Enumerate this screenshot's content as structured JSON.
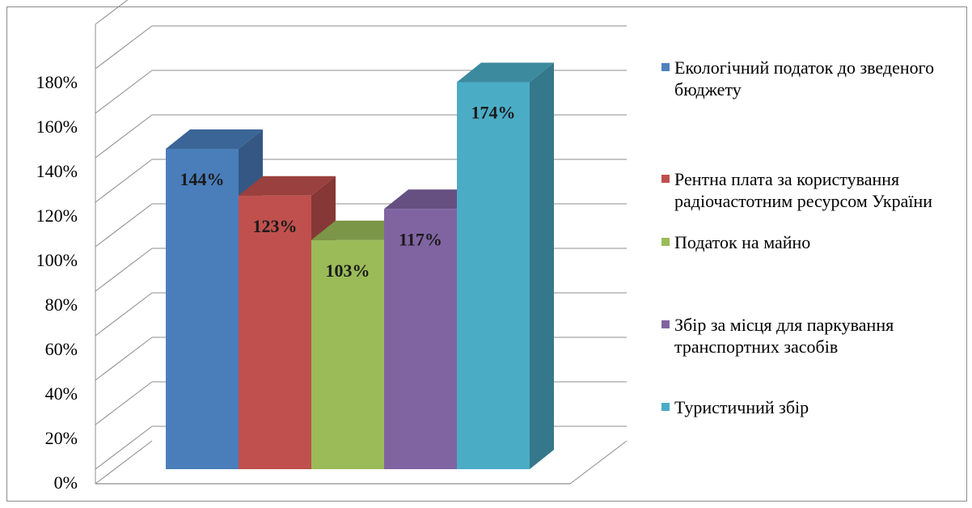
{
  "chart_data": {
    "type": "bar",
    "title": "",
    "xlabel": "",
    "ylabel": "",
    "ylim": [
      0,
      180
    ],
    "y_ticks": [
      "0%",
      "20%",
      "40%",
      "60%",
      "80%",
      "100%",
      "120%",
      "140%",
      "160%",
      "180%"
    ],
    "grid": true,
    "legend_position": "right",
    "three_d": true,
    "series": [
      {
        "name": "Екологічний податок  до зведеного бюджету",
        "value": 144,
        "label": "144%",
        "color": "#4a7ebb",
        "swatch": "#4f81bd"
      },
      {
        "name": "Рентна плата за користування радіочастотним ресурсом України",
        "value": 123,
        "label": "123%",
        "color": "#c0504d",
        "swatch": "#c0504d"
      },
      {
        "name": "Податок на майно",
        "value": 103,
        "label": "103%",
        "color": "#9bbb59",
        "swatch": "#9bbb59"
      },
      {
        "name": "Збір за місця для паркування транспортних засобів",
        "value": 117,
        "label": "117%",
        "color": "#8064a2",
        "swatch": "#8064a2"
      },
      {
        "name": "Туристичний збір",
        "value": 174,
        "label": "174%",
        "color": "#4bacc6",
        "swatch": "#4bacc6"
      }
    ]
  }
}
